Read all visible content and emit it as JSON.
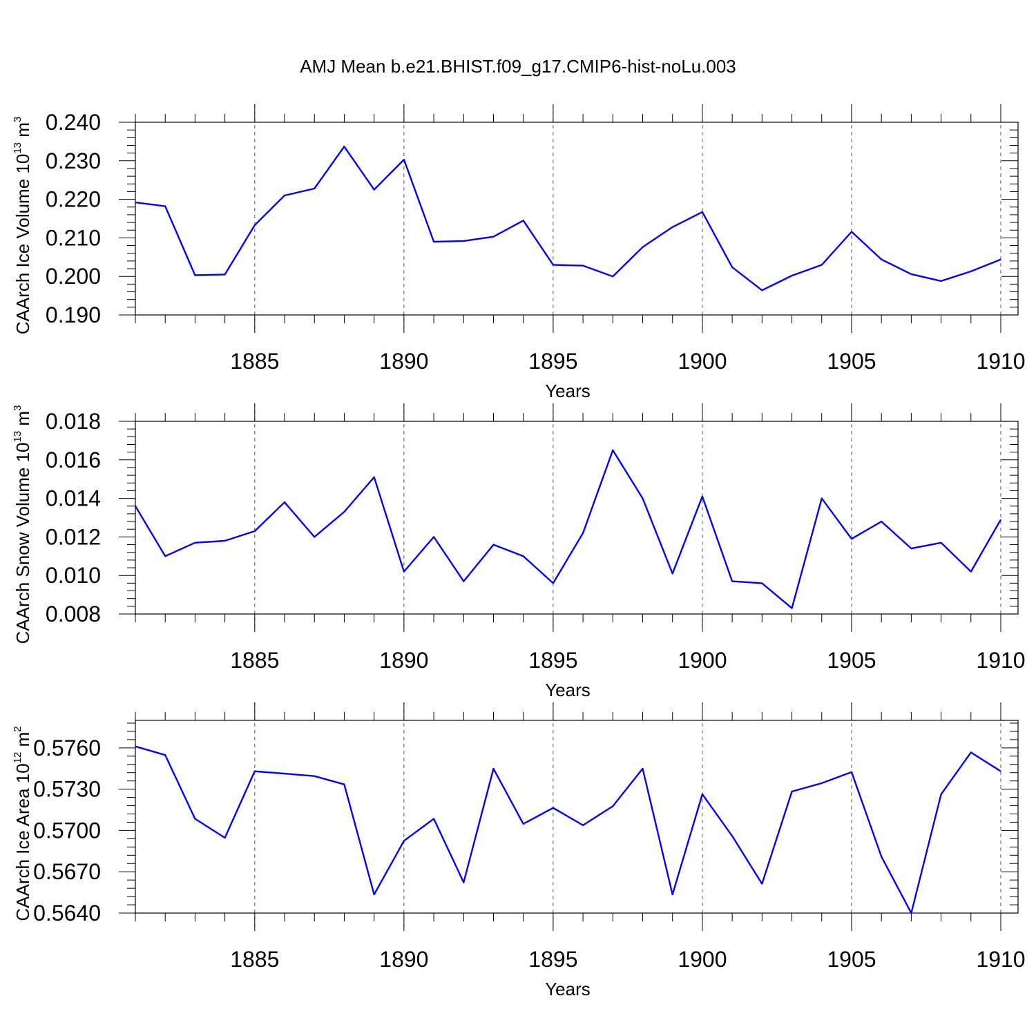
{
  "figure": {
    "title": "AMJ Mean b.e21.BHIST.f09_g17.CMIP6-hist-noLu.003"
  },
  "chart_data": [
    {
      "type": "line",
      "title": "",
      "xlabel": "Years",
      "ylabel": "CAArch Ice Volume 10",
      "ylabel_exp": "13",
      "ylabel_unit": " m",
      "ylabel_unit_exp": "3",
      "xlim": [
        1881,
        1910
      ],
      "ylim": [
        0.19,
        0.24
      ],
      "xticks": [
        1885,
        1890,
        1895,
        1900,
        1905,
        1910
      ],
      "xtick_labels": [
        "1885",
        "1890",
        "1895",
        "1900",
        "1905",
        "1910"
      ],
      "yticks": [
        0.19,
        0.2,
        0.21,
        0.22,
        0.23,
        0.24
      ],
      "ytick_labels": [
        "0.190",
        "0.200",
        "0.210",
        "0.220",
        "0.230",
        "0.240"
      ],
      "grid": "vertical dashed at major x ticks",
      "series": [
        {
          "name": "CAArch Ice Volume",
          "color": "#0000ff",
          "x": [
            1881,
            1882,
            1883,
            1884,
            1885,
            1886,
            1887,
            1888,
            1889,
            1890,
            1891,
            1892,
            1893,
            1894,
            1895,
            1896,
            1897,
            1898,
            1899,
            1900,
            1901,
            1902,
            1903,
            1904,
            1905,
            1906,
            1907,
            1908,
            1909,
            1910
          ],
          "values": [
            0.2192,
            0.2182,
            0.2003,
            0.2005,
            0.2133,
            0.221,
            0.2228,
            0.2337,
            0.2225,
            0.2303,
            0.209,
            0.2092,
            0.2103,
            0.2145,
            0.203,
            0.2028,
            0.2,
            0.2076,
            0.2128,
            0.2167,
            0.2024,
            0.1964,
            0.2002,
            0.203,
            0.2116,
            0.2044,
            0.2006,
            0.1988,
            0.2013,
            0.2044
          ]
        }
      ]
    },
    {
      "type": "line",
      "title": "",
      "xlabel": "Years",
      "ylabel": "CAArch Snow Volume 10",
      "ylabel_exp": "13",
      "ylabel_unit": " m",
      "ylabel_unit_exp": "3",
      "xlim": [
        1881,
        1910
      ],
      "ylim": [
        0.008,
        0.018
      ],
      "xticks": [
        1885,
        1890,
        1895,
        1900,
        1905,
        1910
      ],
      "xtick_labels": [
        "1885",
        "1890",
        "1895",
        "1900",
        "1905",
        "1910"
      ],
      "yticks": [
        0.008,
        0.01,
        0.012,
        0.014,
        0.016,
        0.018
      ],
      "ytick_labels": [
        "0.008",
        "0.010",
        "0.012",
        "0.014",
        "0.016",
        "0.018"
      ],
      "grid": "vertical dashed at major x ticks",
      "series": [
        {
          "name": "CAArch Snow Volume",
          "color": "#0000ff",
          "x": [
            1881,
            1882,
            1883,
            1884,
            1885,
            1886,
            1887,
            1888,
            1889,
            1890,
            1891,
            1892,
            1893,
            1894,
            1895,
            1896,
            1897,
            1898,
            1899,
            1900,
            1901,
            1902,
            1903,
            1904,
            1905,
            1906,
            1907,
            1908,
            1909,
            1910
          ],
          "values": [
            0.0136,
            0.011,
            0.0117,
            0.0118,
            0.0123,
            0.0138,
            0.012,
            0.0133,
            0.0151,
            0.0102,
            0.012,
            0.0097,
            0.0116,
            0.011,
            0.0096,
            0.0122,
            0.0165,
            0.014,
            0.0101,
            0.0141,
            0.0097,
            0.0096,
            0.0083,
            0.014,
            0.0119,
            0.0128,
            0.0114,
            0.0117,
            0.0102,
            0.0129
          ]
        }
      ]
    },
    {
      "type": "line",
      "title": "",
      "xlabel": "Years",
      "ylabel": "CAArch Ice Area 10",
      "ylabel_exp": "12",
      "ylabel_unit": " m",
      "ylabel_unit_exp": "2",
      "xlim": [
        1881,
        1910
      ],
      "ylim": [
        0.564,
        0.578
      ],
      "xticks": [
        1885,
        1890,
        1895,
        1900,
        1905,
        1910
      ],
      "xtick_labels": [
        "1885",
        "1890",
        "1895",
        "1900",
        "1905",
        "1910"
      ],
      "yticks": [
        0.564,
        0.567,
        0.57,
        0.573,
        0.576
      ],
      "ytick_labels": [
        "0.5640",
        "0.5670",
        "0.5700",
        "0.5730",
        "0.5760"
      ],
      "grid": "vertical dashed at major x ticks",
      "series": [
        {
          "name": "CAArch Ice Area",
          "color": "#0000ff",
          "x": [
            1881,
            1882,
            1883,
            1884,
            1885,
            1886,
            1887,
            1888,
            1889,
            1890,
            1891,
            1892,
            1893,
            1894,
            1895,
            1896,
            1897,
            1898,
            1899,
            1900,
            1901,
            1902,
            1903,
            1904,
            1905,
            1906,
            1907,
            1908,
            1909,
            1910
          ],
          "values": [
            0.57611,
            0.57548,
            0.57085,
            0.56947,
            0.5743,
            0.57413,
            0.57395,
            0.57335,
            0.56535,
            0.56925,
            0.57085,
            0.56623,
            0.57449,
            0.57048,
            0.57164,
            0.57038,
            0.57177,
            0.57449,
            0.56535,
            0.57263,
            0.5696,
            0.56613,
            0.57283,
            0.57344,
            0.57424,
            0.5681,
            0.564,
            0.57263,
            0.57567,
            0.5743
          ]
        }
      ]
    }
  ]
}
